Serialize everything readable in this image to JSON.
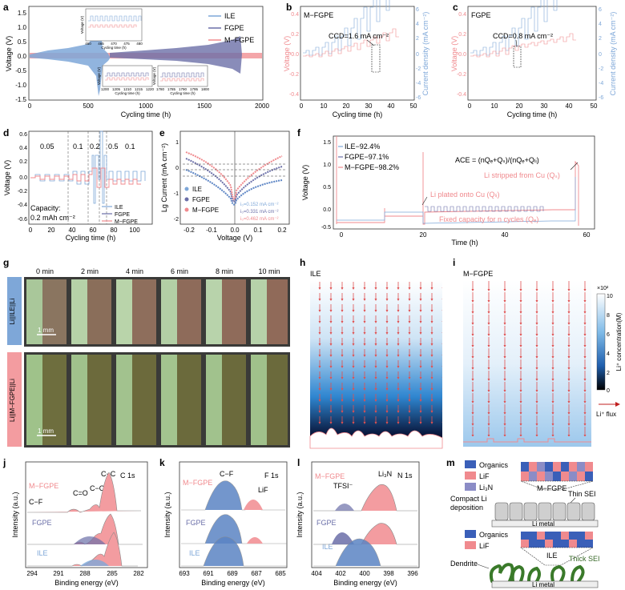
{
  "figure": {
    "panels": {
      "a": {
        "letter": "a",
        "ylabel": "Voltage (V)",
        "xlabel": "Cycling time (h)",
        "yticks": [
          "1.5",
          "1.0",
          "0.5",
          "0.0",
          "-0.5",
          "-1.0",
          "-1.5"
        ],
        "xticks": [
          "0",
          "500",
          "1000",
          "1500",
          "2000"
        ],
        "legend": [
          "ILE",
          "FGPE",
          "M−FGPE"
        ],
        "inset1": {
          "ylabel": "Voltage (V)",
          "xlabel": "Cycling time (h)",
          "xticks": [
            "460",
            "465",
            "470",
            "475",
            "480"
          ]
        },
        "inset2": {
          "ylabel": "Voltage (V)",
          "xlabel": "Cycling time (h)",
          "xticks": [
            "1200",
            "1205",
            "1210",
            "1215",
            "1220"
          ]
        },
        "inset3": {
          "ylabel": "Voltage (V)",
          "xlabel": "Cycling time (h)",
          "xticks": [
            "1780",
            "1785",
            "1790",
            "1795",
            "1800"
          ]
        }
      },
      "b": {
        "letter": "b",
        "title": "M−FGPE",
        "annotation": "CCD=1.6 mA cm⁻²",
        "ylabel_left": "Voltage (V)",
        "ylabel_right": "Current density (mA cm⁻²)",
        "xlabel": "Cycling time (h)",
        "xticks": [
          "0",
          "10",
          "20",
          "30",
          "40",
          "50"
        ],
        "yticks_left": [
          "0.4",
          "0.2",
          "0.0",
          "-0.2",
          "-0.4"
        ],
        "yticks_right": [
          "6",
          "4",
          "2",
          "0",
          "-2",
          "-4",
          "-6"
        ]
      },
      "c": {
        "letter": "c",
        "title": "FGPE",
        "annotation": "CCD=0.8 mA cm⁻²",
        "ylabel_left": "Voltage (V)",
        "ylabel_right": "Current density (mA cm⁻²)",
        "xlabel": "Cycling time (h)",
        "xticks": [
          "0",
          "10",
          "20",
          "30",
          "40",
          "50"
        ],
        "yticks_left": [
          "0.4",
          "0.2",
          "0.0",
          "-0.2",
          "-0.4"
        ],
        "yticks_right": [
          "6",
          "4",
          "2",
          "0",
          "-2",
          "-4",
          "-6"
        ]
      },
      "d": {
        "letter": "d",
        "ylabel": "Voltage (V)",
        "xlabel": "Cycling time (h)",
        "xticks": [
          "0",
          "20",
          "40",
          "60",
          "80",
          "100"
        ],
        "yticks": [
          "0.6",
          "0.4",
          "0.2",
          "0.0",
          "-0.2",
          "-0.4",
          "-0.6"
        ],
        "rate_labels": [
          "0.05",
          "0.1",
          "0.2",
          "0.5",
          "0.1"
        ],
        "capacity": "Capacity:",
        "capacity_value": "0.2 mAh cm⁻²",
        "legend": [
          "ILE",
          "FGPE",
          "M−FGPE"
        ]
      },
      "e": {
        "letter": "e",
        "ylabel": "Lg Current (mA cm⁻²)",
        "xlabel": "Voltage (V)",
        "xticks": [
          "-0.2",
          "-0.1",
          "0.0",
          "0.1",
          "0.2"
        ],
        "yticks": [
          "1",
          "0",
          "-1",
          "-2"
        ],
        "legend": [
          "ILE",
          "FGPE",
          "M−FGPE"
        ],
        "i0": [
          "i₀=0.152 mA cm⁻²",
          "i₀=0.331 mA cm⁻²",
          "i₀=0.462 mA cm⁻²"
        ]
      },
      "f": {
        "letter": "f",
        "ylabel": "Voltage (V)",
        "xlabel": "Time (h)",
        "xticks": [
          "0",
          "20",
          "40",
          "60"
        ],
        "yticks": [
          "1.5",
          "1.0",
          "0.5",
          "0.0",
          "-0.5"
        ],
        "legend": [
          "ILE−92.4%",
          "FGPE−97.1%",
          "M−FGPE−98.2%"
        ],
        "ace": "ACE = (nQₑ+Qₛ)/(nQₑ+Qₗᵢ)",
        "stripped": "Li stripped from Cu (Qₛ)",
        "plated": "Li plated onto Cu (Qₗᵢ)",
        "fixed": "Fixed capacity for n cycles (Qₑ)"
      },
      "g": {
        "letter": "g",
        "times": [
          "0 min",
          "2 min",
          "4 min",
          "6 min",
          "8 min",
          "10 min"
        ],
        "row1": "Li||ILE||Li",
        "row2": "Li||M−FGPE||Li",
        "scale": "1 mm"
      },
      "h": {
        "letter": "h",
        "title": "ILE"
      },
      "i": {
        "letter": "i",
        "title": "M−FGPE",
        "cbar_label": "Li⁺ concentration(M)",
        "cbar_exp": "×10²",
        "cbar_ticks": [
          "10",
          "8",
          "6",
          "4",
          "2",
          "0"
        ],
        "flux": "Li⁺ flux"
      },
      "j": {
        "letter": "j",
        "title": "C 1s",
        "xlabel": "Binding energy (eV)",
        "ylabel": "Intensity (a.u.)",
        "xticks": [
          "294",
          "291",
          "288",
          "285",
          "282"
        ],
        "samples": [
          "M−FGPE",
          "FGPE",
          "ILE"
        ],
        "peaks": [
          "C−C",
          "C−F",
          "C=O",
          "C−O"
        ]
      },
      "k": {
        "letter": "k",
        "title": "F 1s",
        "xlabel": "Binding energy (eV)",
        "ylabel": "Intensity (a.u.)",
        "xticks": [
          "693",
          "691",
          "689",
          "687",
          "685"
        ],
        "samples": [
          "M−FGPE",
          "FGPE",
          "ILE"
        ],
        "peaks": [
          "C−F",
          "LiF"
        ]
      },
      "l": {
        "letter": "l",
        "title": "N 1s",
        "xlabel": "Binding energy (eV)",
        "ylabel": "Intensity (a.u.)",
        "xticks": [
          "404",
          "402",
          "400",
          "398",
          "396"
        ],
        "samples": [
          "M−FGPE",
          "FGPE",
          "ILE"
        ],
        "peaks": [
          "TFSI⁻",
          "Li₃N"
        ]
      },
      "m": {
        "letter": "m",
        "top_legend": [
          "Organics",
          "LiF",
          "Li₃N"
        ],
        "top_label": "M−FGPE",
        "compact": "Compact Li",
        "deposition": "deposition",
        "thin": "Thin SEI",
        "metal": "Li metal",
        "bottom_legend": [
          "Organics",
          "LiF"
        ],
        "bottom_label": "ILE",
        "thick": "Thick SEI",
        "dendrite": "Dendrite"
      }
    }
  },
  "colors": {
    "ile": "#7ea7d8",
    "fgpe": "#6b6fa8",
    "mfgpe": "#f08a8e",
    "ilefill": "#5b84c4",
    "pinkfill": "#f39ca0"
  }
}
